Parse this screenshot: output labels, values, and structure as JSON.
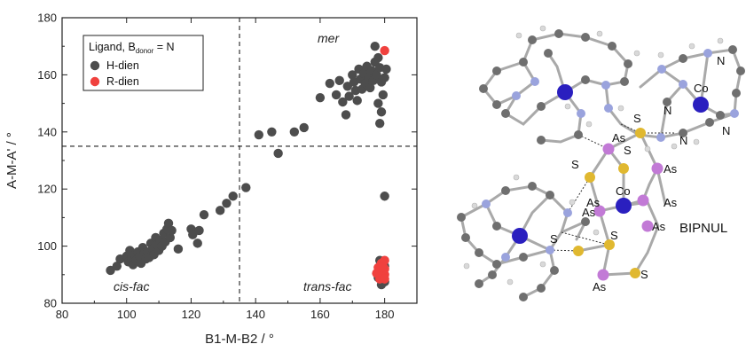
{
  "chart_data": {
    "type": "scatter",
    "xlabel": "B1-M-B2 / °",
    "ylabel": "A-M-A' / °",
    "xlim": [
      80,
      190
    ],
    "ylim": [
      80,
      180
    ],
    "xticks": [
      "80",
      "100",
      "120",
      "140",
      "160",
      "180"
    ],
    "yticks": [
      "80",
      "100",
      "120",
      "140",
      "160",
      "180"
    ],
    "dashed_lines": {
      "x": 135,
      "y": 135
    },
    "legend": {
      "title_main": "Ligand, B",
      "title_sub": "donor",
      "title_end": " = N",
      "placement": "top-left"
    },
    "annotations": {
      "mer": "mer",
      "cis_fac": "cis-fac",
      "trans_fac": "trans-fac"
    },
    "series": [
      {
        "name": "H-dien",
        "color": "#4d4d4d",
        "points": [
          [
            95,
            91.5
          ],
          [
            97,
            93
          ],
          [
            98,
            95.5
          ],
          [
            100,
            96.5
          ],
          [
            100.5,
            94.5
          ],
          [
            101,
            98.5
          ],
          [
            101.5,
            96
          ],
          [
            102,
            93.5
          ],
          [
            102.5,
            97
          ],
          [
            103,
            95
          ],
          [
            103.5,
            98
          ],
          [
            104,
            96.5
          ],
          [
            104.5,
            94
          ],
          [
            105,
            99.5
          ],
          [
            105.5,
            97.5
          ],
          [
            106,
            95.5
          ],
          [
            106.5,
            98
          ],
          [
            107,
            96
          ],
          [
            107.5,
            101
          ],
          [
            108,
            99
          ],
          [
            108.5,
            97
          ],
          [
            109,
            103
          ],
          [
            109.5,
            100.5
          ],
          [
            110,
            98.5
          ],
          [
            110.5,
            102
          ],
          [
            111,
            100
          ],
          [
            111.5,
            104.5
          ],
          [
            112,
            101.5
          ],
          [
            112.5,
            106
          ],
          [
            113,
            108
          ],
          [
            113.5,
            103
          ],
          [
            114,
            105.5
          ],
          [
            116,
            99
          ],
          [
            120,
            106
          ],
          [
            120.5,
            104
          ],
          [
            122,
            101
          ],
          [
            122.5,
            105.5
          ],
          [
            124,
            111
          ],
          [
            129,
            112.5
          ],
          [
            131,
            115
          ],
          [
            133,
            117.5
          ],
          [
            137,
            120.5
          ],
          [
            141,
            139
          ],
          [
            145,
            140
          ],
          [
            147,
            132.5
          ],
          [
            152,
            140
          ],
          [
            155,
            141.5
          ],
          [
            160,
            152
          ],
          [
            163,
            157
          ],
          [
            165,
            153
          ],
          [
            166,
            158
          ],
          [
            167,
            150.5
          ],
          [
            168,
            146
          ],
          [
            168.5,
            156
          ],
          [
            169,
            152.5
          ],
          [
            170,
            160
          ],
          [
            170.5,
            157.5
          ],
          [
            171,
            154.5
          ],
          [
            171.5,
            151
          ],
          [
            172,
            162
          ],
          [
            172.5,
            158.5
          ],
          [
            173,
            155
          ],
          [
            173.5,
            160.5
          ],
          [
            174,
            157
          ],
          [
            174.5,
            163
          ],
          [
            175,
            159
          ],
          [
            175.5,
            155.5
          ],
          [
            176,
            161.5
          ],
          [
            176.5,
            158
          ],
          [
            177,
            164.5
          ],
          [
            177.5,
            160
          ],
          [
            178,
            166
          ],
          [
            178.5,
            162.5
          ],
          [
            179,
            157.5
          ],
          [
            179.5,
            153
          ],
          [
            180,
            159
          ],
          [
            180.5,
            162
          ],
          [
            177,
            170
          ],
          [
            178,
            150
          ],
          [
            179,
            147
          ],
          [
            178.5,
            143
          ],
          [
            180,
            117.5
          ],
          [
            178,
            89
          ],
          [
            179,
            91
          ],
          [
            179.5,
            88
          ],
          [
            180,
            93
          ],
          [
            180,
            87.5
          ],
          [
            178.5,
            95
          ],
          [
            179,
            86.5
          ]
        ]
      },
      {
        "name": "R-dien",
        "color": "#f0413e",
        "points": [
          [
            180,
            168.5
          ],
          [
            177.5,
            90.5
          ],
          [
            178,
            92.5
          ],
          [
            178.5,
            89.5
          ],
          [
            179,
            91.5
          ],
          [
            179.5,
            93
          ],
          [
            180,
            90
          ],
          [
            180,
            92
          ],
          [
            179,
            94
          ],
          [
            178.5,
            88.5
          ],
          [
            180,
            95
          ],
          [
            179.5,
            89
          ],
          [
            178,
            91
          ],
          [
            180,
            88.5
          ],
          [
            179,
            92.5
          ]
        ]
      }
    ]
  },
  "molecule": {
    "name": "BIPNUL",
    "labels": [
      "N",
      "Co",
      "N",
      "N",
      "N",
      "S",
      "S",
      "As",
      "As",
      "S",
      "Co",
      "As",
      "As",
      "As",
      "S",
      "S",
      "As",
      "S",
      "As"
    ]
  }
}
